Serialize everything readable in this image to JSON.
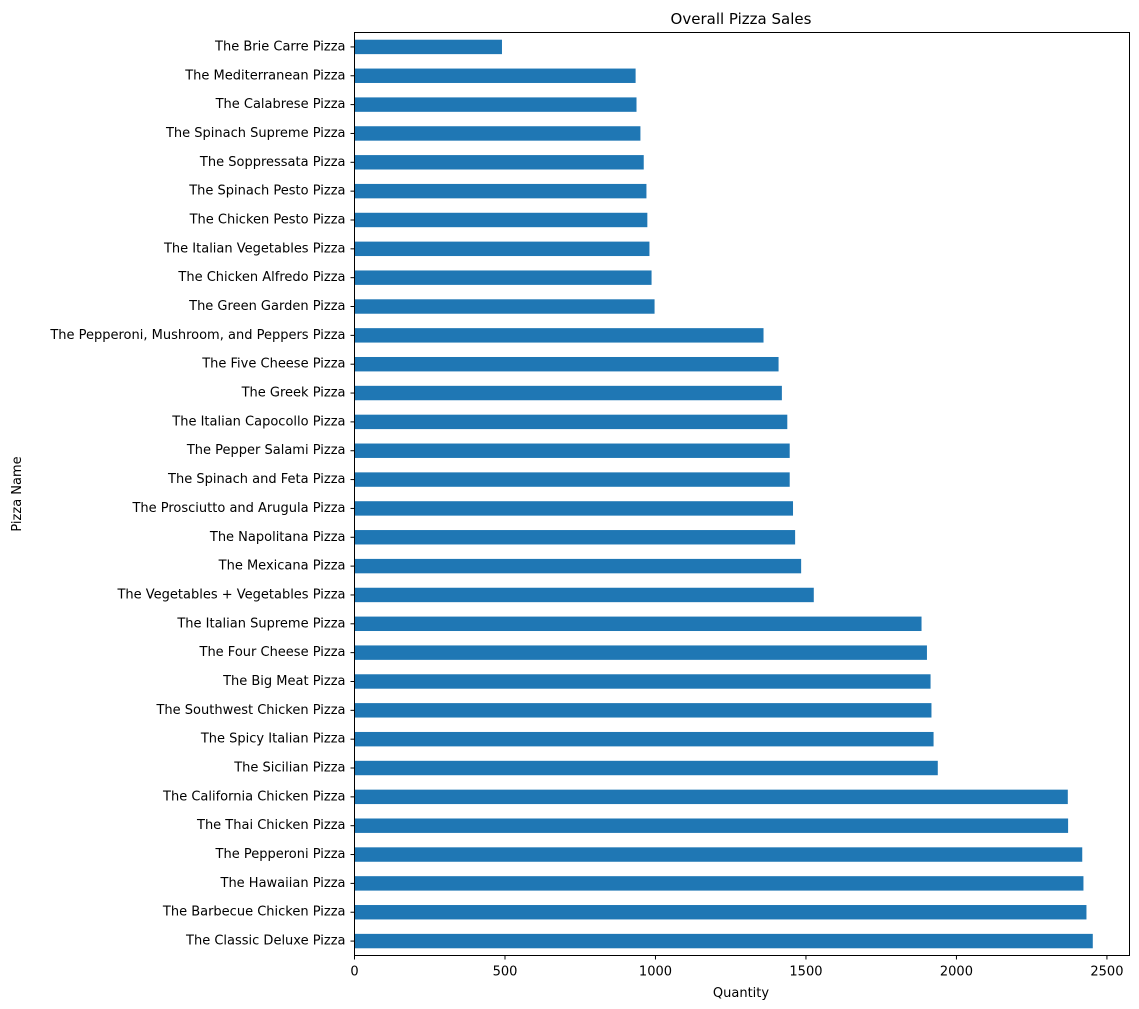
{
  "chart_data": {
    "type": "bar",
    "orientation": "horizontal",
    "title": "Overall Pizza Sales",
    "xlabel": "Quantity",
    "ylabel": "Pizza Name",
    "xlim": [
      0,
      2575
    ],
    "xticks": [
      0,
      500,
      1000,
      1500,
      2000,
      2500
    ],
    "grid": false,
    "legend": "none",
    "bar_color": "#1f77b4",
    "categories": [
      "The Brie Carre Pizza",
      "The Mediterranean Pizza",
      "The Calabrese Pizza",
      "The Spinach Supreme Pizza",
      "The Soppressata Pizza",
      "The Spinach Pesto Pizza",
      "The Chicken Pesto Pizza",
      "The Italian Vegetables Pizza",
      "The Chicken Alfredo Pizza",
      "The Green Garden Pizza",
      "The Pepperoni, Mushroom, and Peppers Pizza",
      "The Five Cheese Pizza",
      "The Greek Pizza",
      "The Italian Capocollo Pizza",
      "The Pepper Salami Pizza",
      "The Spinach and Feta Pizza",
      "The Prosciutto and Arugula Pizza",
      "The Napolitana Pizza",
      "The Mexicana Pizza",
      "The Vegetables + Vegetables Pizza",
      "The Italian Supreme Pizza",
      "The Four Cheese Pizza",
      "The Big Meat Pizza",
      "The Southwest Chicken Pizza",
      "The Spicy Italian Pizza",
      "The Sicilian Pizza",
      "The California Chicken Pizza",
      "The Thai Chicken Pizza",
      "The Pepperoni Pizza",
      "The Hawaiian Pizza",
      "The Barbecue Chicken Pizza",
      "The Classic Deluxe Pizza"
    ],
    "values": [
      490,
      934,
      937,
      950,
      961,
      970,
      973,
      980,
      987,
      997,
      1359,
      1409,
      1420,
      1438,
      1446,
      1446,
      1457,
      1464,
      1484,
      1526,
      1884,
      1902,
      1914,
      1917,
      1924,
      1938,
      2370,
      2371,
      2418,
      2422,
      2432,
      2453
    ]
  }
}
